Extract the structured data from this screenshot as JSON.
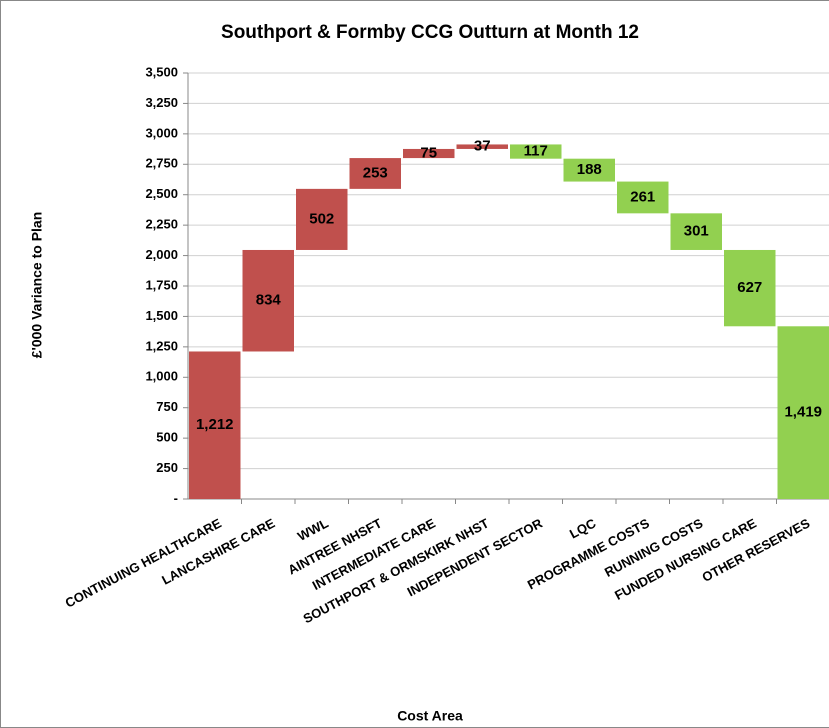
{
  "chart_data": {
    "type": "waterfall",
    "title": "Southport & Formby CCG Outturn at Month 12",
    "x_label": "Cost Area",
    "y_label": "£'000 Variance to Plan",
    "categories": [
      "CONTINUING HEALTHCARE",
      "LANCASHIRE CARE",
      "WWL",
      "AINTREE NHSFT",
      "INTERMEDIATE CARE",
      "SOUTHPORT & ORMSKIRK NHST",
      "INDEPENDENT SECTOR",
      "LQC",
      "PROGRAMME COSTS",
      "RUNNING COSTS",
      "FUNDED NURSING CARE",
      "OTHER RESERVES"
    ],
    "values": [
      1212,
      834,
      502,
      253,
      75,
      37,
      -117,
      -188,
      -261,
      -301,
      -627,
      -1419
    ],
    "value_labels": [
      "1,212",
      "834",
      "502",
      "253",
      "75",
      "37",
      "117",
      "188",
      "261",
      "301",
      "627",
      "1,419"
    ],
    "colors": {
      "increase": "#c0504d",
      "decrease": "#92d050"
    },
    "ylim": [
      0,
      3500
    ],
    "yticks": [
      {
        "value": 0,
        "label": "-"
      },
      250,
      500,
      750,
      {
        "value": 1000,
        "label": "1,000"
      },
      {
        "value": 1250,
        "label": "1,250"
      },
      {
        "value": 1500,
        "label": "1,500"
      },
      {
        "value": 1750,
        "label": "1,750"
      },
      {
        "value": 2000,
        "label": "2,000"
      },
      {
        "value": 2250,
        "label": "2,250"
      },
      {
        "value": 2500,
        "label": "2,500"
      },
      {
        "value": 2750,
        "label": "2,750"
      },
      {
        "value": 3000,
        "label": "3,000"
      },
      {
        "value": 3250,
        "label": "3,250"
      },
      {
        "value": 3500,
        "label": "3,500"
      }
    ],
    "grid": true
  }
}
